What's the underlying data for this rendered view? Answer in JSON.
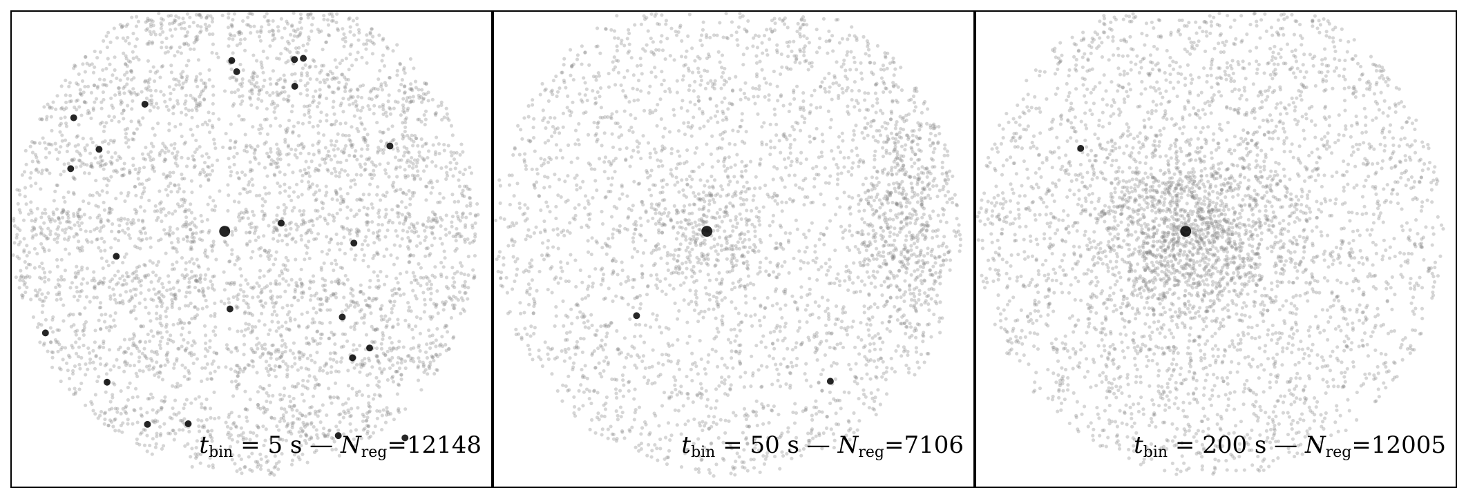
{
  "figure": {
    "panels": [
      {
        "id": "panel-1",
        "t_var": "t",
        "t_sub": "bin",
        "t_value": " = 5 s — ",
        "n_var": "N",
        "n_sub": "reg",
        "n_value": "=12148",
        "seed": 11,
        "background_points": 4200,
        "cluster_points": 0,
        "stripes": true,
        "bright_sources": 24
      },
      {
        "id": "panel-2",
        "t_var": "t",
        "t_sub": "bin",
        "t_value": " = 50 s — ",
        "n_var": "N",
        "n_sub": "reg",
        "n_value": "=7106",
        "seed": 23,
        "background_points": 2600,
        "cluster_points": 800,
        "stripes": false,
        "bright_sources": 3
      },
      {
        "id": "panel-3",
        "t_var": "t",
        "t_sub": "bin",
        "t_value": " = 200 s — ",
        "n_var": "N",
        "n_sub": "reg",
        "n_value": "=12005",
        "seed": 37,
        "background_points": 3000,
        "cluster_points": 1400,
        "stripes": false,
        "bright_sources": 2
      }
    ],
    "point_color": "#808080",
    "source_color": "#000000"
  }
}
